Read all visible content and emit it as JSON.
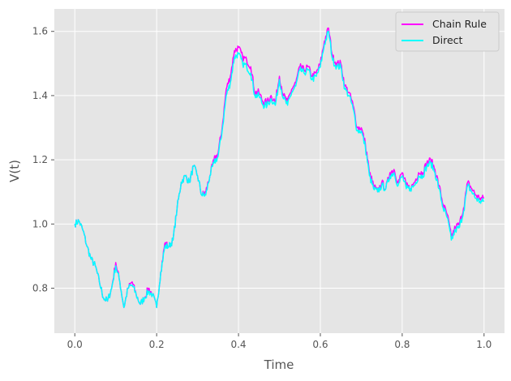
{
  "chart_data": {
    "type": "line",
    "title": "",
    "xlabel": "Time",
    "ylabel": "V(t)",
    "xlim": [
      -0.05,
      1.05
    ],
    "ylim": [
      0.66,
      1.67
    ],
    "xticks": [
      0.0,
      0.2,
      0.4,
      0.6,
      0.8,
      1.0
    ],
    "xtick_labels": [
      "0.0",
      "0.2",
      "0.4",
      "0.6",
      "0.8",
      "1.0"
    ],
    "yticks": [
      0.8,
      1.0,
      1.2,
      1.4,
      1.6
    ],
    "ytick_labels": [
      "0.8",
      "1.0",
      "1.2",
      "1.4",
      "1.6"
    ],
    "grid": true,
    "style": "ggplot",
    "legend_position": "top-right",
    "x": [
      0.0,
      0.01,
      0.02,
      0.03,
      0.04,
      0.05,
      0.06,
      0.07,
      0.08,
      0.09,
      0.1,
      0.11,
      0.12,
      0.13,
      0.14,
      0.15,
      0.16,
      0.17,
      0.18,
      0.19,
      0.2,
      0.21,
      0.22,
      0.23,
      0.24,
      0.25,
      0.26,
      0.27,
      0.28,
      0.29,
      0.3,
      0.31,
      0.32,
      0.33,
      0.34,
      0.35,
      0.36,
      0.37,
      0.38,
      0.39,
      0.4,
      0.41,
      0.42,
      0.43,
      0.44,
      0.45,
      0.46,
      0.47,
      0.48,
      0.49,
      0.5,
      0.51,
      0.52,
      0.53,
      0.54,
      0.55,
      0.56,
      0.57,
      0.58,
      0.59,
      0.6,
      0.61,
      0.62,
      0.63,
      0.64,
      0.65,
      0.66,
      0.67,
      0.68,
      0.69,
      0.7,
      0.71,
      0.72,
      0.73,
      0.74,
      0.75,
      0.76,
      0.77,
      0.78,
      0.79,
      0.8,
      0.81,
      0.82,
      0.83,
      0.84,
      0.85,
      0.86,
      0.87,
      0.88,
      0.89,
      0.9,
      0.91,
      0.92,
      0.93,
      0.94,
      0.95,
      0.96,
      0.97,
      0.98,
      0.99,
      1.0
    ],
    "series": [
      {
        "name": "Chain Rule",
        "color": "#ff00ff",
        "values": [
          1.0,
          1.01,
          0.98,
          0.93,
          0.89,
          0.87,
          0.82,
          0.77,
          0.76,
          0.8,
          0.88,
          0.82,
          0.74,
          0.8,
          0.82,
          0.78,
          0.75,
          0.77,
          0.8,
          0.78,
          0.74,
          0.85,
          0.94,
          0.93,
          0.95,
          1.05,
          1.13,
          1.15,
          1.13,
          1.18,
          1.15,
          1.09,
          1.1,
          1.15,
          1.2,
          1.22,
          1.3,
          1.42,
          1.46,
          1.54,
          1.55,
          1.52,
          1.51,
          1.49,
          1.41,
          1.41,
          1.38,
          1.38,
          1.4,
          1.38,
          1.46,
          1.4,
          1.38,
          1.42,
          1.44,
          1.49,
          1.48,
          1.49,
          1.46,
          1.47,
          1.5,
          1.57,
          1.61,
          1.52,
          1.5,
          1.5,
          1.43,
          1.41,
          1.37,
          1.3,
          1.3,
          1.25,
          1.16,
          1.12,
          1.1,
          1.13,
          1.11,
          1.16,
          1.17,
          1.13,
          1.16,
          1.12,
          1.11,
          1.13,
          1.16,
          1.16,
          1.19,
          1.2,
          1.17,
          1.12,
          1.06,
          1.03,
          0.96,
          0.99,
          1.0,
          1.05,
          1.13,
          1.11,
          1.09,
          1.08,
          1.08
        ]
      },
      {
        "name": "Direct",
        "color": "#00ffff",
        "values": [
          1.0,
          1.01,
          0.98,
          0.93,
          0.89,
          0.87,
          0.82,
          0.77,
          0.76,
          0.8,
          0.87,
          0.82,
          0.74,
          0.8,
          0.81,
          0.78,
          0.75,
          0.77,
          0.79,
          0.78,
          0.74,
          0.85,
          0.93,
          0.93,
          0.95,
          1.05,
          1.13,
          1.15,
          1.13,
          1.18,
          1.15,
          1.09,
          1.09,
          1.15,
          1.19,
          1.21,
          1.29,
          1.4,
          1.44,
          1.52,
          1.53,
          1.5,
          1.49,
          1.47,
          1.4,
          1.4,
          1.37,
          1.37,
          1.39,
          1.37,
          1.45,
          1.39,
          1.37,
          1.41,
          1.43,
          1.48,
          1.47,
          1.48,
          1.45,
          1.46,
          1.49,
          1.56,
          1.6,
          1.51,
          1.49,
          1.49,
          1.42,
          1.4,
          1.36,
          1.29,
          1.29,
          1.24,
          1.15,
          1.11,
          1.1,
          1.12,
          1.11,
          1.15,
          1.16,
          1.12,
          1.15,
          1.11,
          1.11,
          1.12,
          1.15,
          1.15,
          1.18,
          1.19,
          1.16,
          1.11,
          1.05,
          1.02,
          0.95,
          0.98,
          0.99,
          1.04,
          1.12,
          1.1,
          1.08,
          1.07,
          1.07
        ]
      }
    ]
  }
}
